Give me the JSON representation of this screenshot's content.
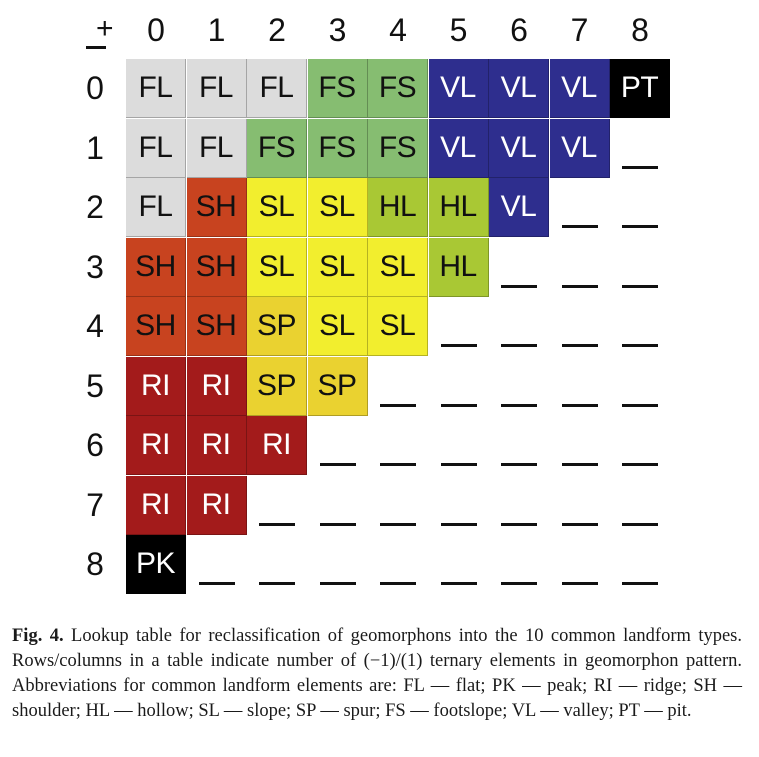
{
  "figure": {
    "plus_sign": "+",
    "columns": [
      "0",
      "1",
      "2",
      "3",
      "4",
      "5",
      "6",
      "7",
      "8"
    ],
    "rows": [
      "0",
      "1",
      "2",
      "3",
      "4",
      "5",
      "6",
      "7",
      "8"
    ],
    "colors": {
      "FL": "#dcdcdc",
      "FS": "#86bd71",
      "VL": "#2e2e8e",
      "PT": "#000000",
      "SH": "#c8431f",
      "SL": "#f2ee2e",
      "HL": "#a9c834",
      "SP": "#ead230",
      "RI": "#a31b1b",
      "PK": "#000000"
    },
    "text_colors": {
      "FL": "#111111",
      "FS": "#111111",
      "VL": "#ffffff",
      "PT": "#ffffff",
      "SH": "#111111",
      "SL": "#111111",
      "HL": "#111111",
      "SP": "#111111",
      "RI": "#ffffff",
      "PK": "#ffffff"
    },
    "table": [
      [
        "FL",
        "FL",
        "FL",
        "FS",
        "FS",
        "VL",
        "VL",
        "VL",
        "PT"
      ],
      [
        "FL",
        "FL",
        "FS",
        "FS",
        "FS",
        "VL",
        "VL",
        "VL",
        "_"
      ],
      [
        "FL",
        "SH",
        "SL",
        "SL",
        "HL",
        "HL",
        "VL",
        "_",
        "_"
      ],
      [
        "SH",
        "SH",
        "SL",
        "SL",
        "SL",
        "HL",
        "_",
        "_",
        "_"
      ],
      [
        "SH",
        "SH",
        "SP",
        "SL",
        "SL",
        "_",
        "_",
        "_",
        "_"
      ],
      [
        "RI",
        "RI",
        "SP",
        "SP",
        "_",
        "_",
        "_",
        "_",
        "_"
      ],
      [
        "RI",
        "RI",
        "RI",
        "_",
        "_",
        "_",
        "_",
        "_",
        "_"
      ],
      [
        "RI",
        "RI",
        "_",
        "_",
        "_",
        "_",
        "_",
        "_",
        "_"
      ],
      [
        "PK",
        "_",
        "_",
        "_",
        "_",
        "_",
        "_",
        "_",
        "_"
      ]
    ]
  },
  "caption": {
    "label": "Fig. 4.",
    "text": " Lookup table for reclassification of geomorphons into the 10 common landform types. Rows/columns in a table indicate number of (−1)/(1) ternary elements in geomorphon pattern. Abbreviations for common landform elements are: FL — flat; PK — peak; RI — ridge; SH — shoulder; HL — hollow; SL — slope; SP — spur; FS — footslope; VL — valley; PT — pit."
  }
}
